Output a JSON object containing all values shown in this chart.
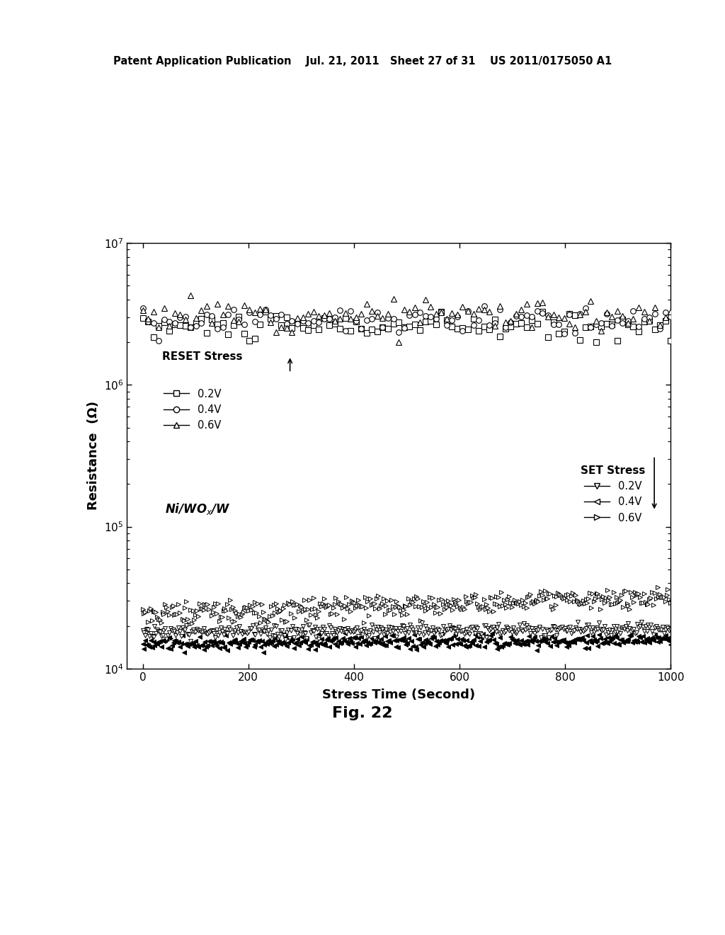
{
  "title_header": "Patent Application Publication    Jul. 21, 2011   Sheet 27 of 31    US 2011/0175050 A1",
  "fig_label": "Fig. 22",
  "xlabel": "Stress Time (Second)",
  "ylabel": "Resistance  (Ω)",
  "xlim": [
    -30,
    1000
  ],
  "xticks": [
    0,
    200,
    400,
    600,
    800,
    1000
  ],
  "background_color": "#ffffff",
  "n_reset": 100,
  "n_set": 400,
  "reset_base_02": 2600000,
  "reset_base_04": 2900000,
  "reset_base_06": 3200000,
  "reset_noise_02": 280000,
  "reset_noise_04": 320000,
  "reset_noise_06": 380000,
  "set_base_upper": 24000,
  "set_base_lower": 16000,
  "set_slope_upper": 8.0,
  "set_slope_lower": 1.5,
  "set_noise_upper": 2500,
  "set_noise_lower": 1200
}
